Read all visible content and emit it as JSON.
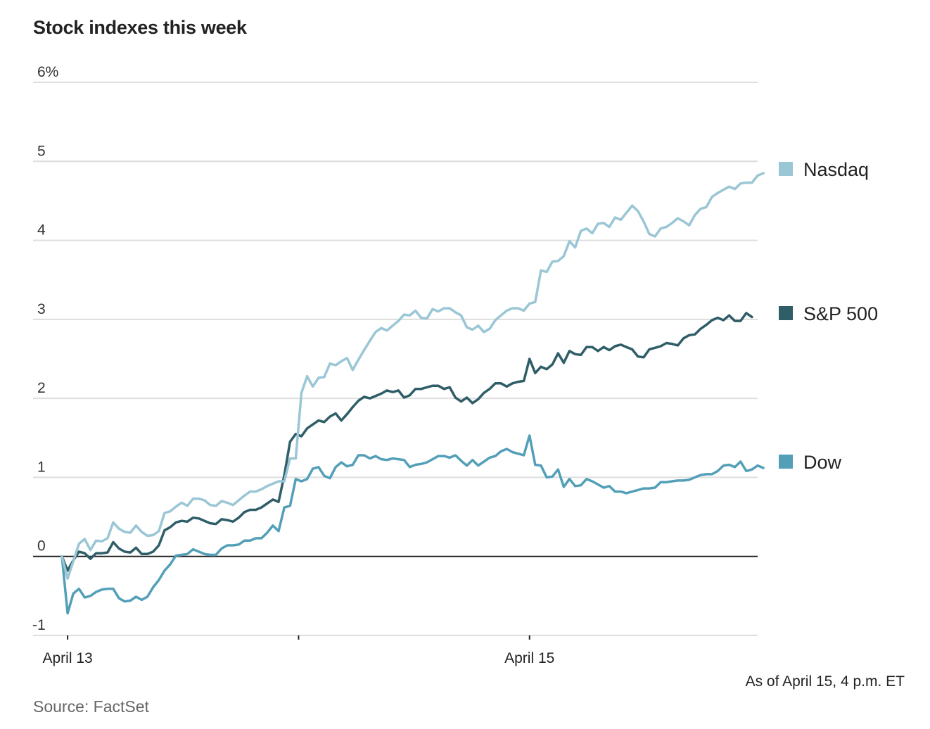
{
  "chart_data": {
    "type": "line",
    "title": "Stock indexes this week",
    "xlabel": "",
    "ylabel": "",
    "ylim": [
      -1,
      6
    ],
    "yticks": [
      {
        "value": 6,
        "label": "6%"
      },
      {
        "value": 5,
        "label": "5"
      },
      {
        "value": 4,
        "label": "4"
      },
      {
        "value": 3,
        "label": "3"
      },
      {
        "value": 2,
        "label": "2"
      },
      {
        "value": 1,
        "label": "1"
      },
      {
        "value": 0,
        "label": "0"
      },
      {
        "value": -1,
        "label": "-1"
      }
    ],
    "xlim": [
      0,
      122
    ],
    "xticks": [
      {
        "index": 1,
        "label": "April 13"
      },
      {
        "index": 41.5,
        "label": ""
      },
      {
        "index": 82,
        "label": "April 15"
      }
    ],
    "grid": true,
    "legend_placement": "right",
    "series": [
      {
        "name": "Nasdaq",
        "color": "#9ac6d5",
        "values": [
          0.0,
          -0.28,
          -0.06,
          0.16,
          0.22,
          0.08,
          0.2,
          0.19,
          0.23,
          0.43,
          0.35,
          0.31,
          0.3,
          0.39,
          0.31,
          0.26,
          0.27,
          0.32,
          0.55,
          0.57,
          0.63,
          0.68,
          0.64,
          0.73,
          0.73,
          0.71,
          0.65,
          0.64,
          0.7,
          0.68,
          0.65,
          0.71,
          0.77,
          0.82,
          0.82,
          0.85,
          0.89,
          0.92,
          0.95,
          0.95,
          1.24,
          1.24,
          2.07,
          2.28,
          2.15,
          2.26,
          2.27,
          2.44,
          2.42,
          2.47,
          2.51,
          2.36,
          2.49,
          2.61,
          2.73,
          2.84,
          2.89,
          2.86,
          2.92,
          2.98,
          3.06,
          3.05,
          3.11,
          3.02,
          3.01,
          3.13,
          3.1,
          3.14,
          3.14,
          3.09,
          3.05,
          2.9,
          2.87,
          2.92,
          2.84,
          2.88,
          2.99,
          3.05,
          3.11,
          3.14,
          3.14,
          3.11,
          3.2,
          3.22,
          3.62,
          3.6,
          3.73,
          3.74,
          3.8,
          3.99,
          3.91,
          4.12,
          4.15,
          4.09,
          4.21,
          4.22,
          4.17,
          4.29,
          4.26,
          4.35,
          4.44,
          4.37,
          4.24,
          4.08,
          4.05,
          4.15,
          4.17,
          4.22,
          4.28,
          4.24,
          4.19,
          4.32,
          4.4,
          4.42,
          4.55,
          4.6,
          4.64,
          4.68,
          4.65,
          4.72,
          4.73,
          4.73,
          4.82,
          4.85
        ]
      },
      {
        "name": "S&P 500",
        "color": "#2f5d68",
        "values": [
          0.0,
          -0.18,
          -0.05,
          0.06,
          0.04,
          -0.03,
          0.04,
          0.04,
          0.05,
          0.18,
          0.1,
          0.06,
          0.05,
          0.11,
          0.03,
          0.03,
          0.06,
          0.14,
          0.33,
          0.37,
          0.43,
          0.45,
          0.44,
          0.49,
          0.48,
          0.45,
          0.42,
          0.41,
          0.47,
          0.46,
          0.44,
          0.49,
          0.56,
          0.59,
          0.59,
          0.62,
          0.67,
          0.72,
          0.69,
          1.03,
          1.45,
          1.55,
          1.52,
          1.62,
          1.67,
          1.72,
          1.7,
          1.77,
          1.81,
          1.72,
          1.8,
          1.89,
          1.97,
          2.02,
          2.0,
          2.03,
          2.06,
          2.1,
          2.08,
          2.1,
          2.01,
          2.04,
          2.12,
          2.12,
          2.14,
          2.16,
          2.16,
          2.12,
          2.14,
          2.01,
          1.96,
          2.01,
          1.94,
          1.99,
          2.07,
          2.12,
          2.19,
          2.19,
          2.15,
          2.19,
          2.21,
          2.22,
          2.5,
          2.32,
          2.4,
          2.37,
          2.43,
          2.57,
          2.45,
          2.6,
          2.56,
          2.55,
          2.65,
          2.65,
          2.6,
          2.65,
          2.61,
          2.66,
          2.68,
          2.65,
          2.62,
          2.53,
          2.52,
          2.62,
          2.64,
          2.66,
          2.7,
          2.69,
          2.67,
          2.76,
          2.8,
          2.81,
          2.88,
          2.93,
          2.99,
          3.02,
          2.99,
          3.05,
          2.98,
          2.98,
          3.08,
          3.03
        ]
      },
      {
        "name": "Dow",
        "color": "#539fb8",
        "values": [
          0.0,
          -0.72,
          -0.47,
          -0.41,
          -0.52,
          -0.5,
          -0.45,
          -0.42,
          -0.41,
          -0.41,
          -0.53,
          -0.57,
          -0.56,
          -0.51,
          -0.55,
          -0.51,
          -0.39,
          -0.3,
          -0.18,
          -0.1,
          0.01,
          0.02,
          0.03,
          0.09,
          0.06,
          0.03,
          0.02,
          0.02,
          0.1,
          0.14,
          0.14,
          0.15,
          0.2,
          0.2,
          0.23,
          0.23,
          0.3,
          0.39,
          0.32,
          0.62,
          0.64,
          0.98,
          0.95,
          0.98,
          1.11,
          1.13,
          1.02,
          0.99,
          1.13,
          1.19,
          1.14,
          1.16,
          1.28,
          1.28,
          1.24,
          1.27,
          1.23,
          1.22,
          1.24,
          1.23,
          1.22,
          1.13,
          1.16,
          1.17,
          1.19,
          1.23,
          1.27,
          1.27,
          1.25,
          1.28,
          1.21,
          1.15,
          1.22,
          1.15,
          1.2,
          1.25,
          1.27,
          1.33,
          1.36,
          1.32,
          1.3,
          1.28,
          1.53,
          1.16,
          1.15,
          1.0,
          1.01,
          1.1,
          0.88,
          0.98,
          0.89,
          0.9,
          0.98,
          0.95,
          0.91,
          0.87,
          0.89,
          0.82,
          0.82,
          0.8,
          0.82,
          0.84,
          0.86,
          0.86,
          0.87,
          0.94,
          0.94,
          0.95,
          0.96,
          0.96,
          0.97,
          1.0,
          1.03,
          1.04,
          1.04,
          1.08,
          1.15,
          1.16,
          1.13,
          1.2,
          1.08,
          1.1,
          1.15,
          1.12
        ]
      }
    ],
    "annotations": {
      "as_of": "As of April 15, 4 p.m. ET",
      "source": "Source: FactSet"
    }
  }
}
